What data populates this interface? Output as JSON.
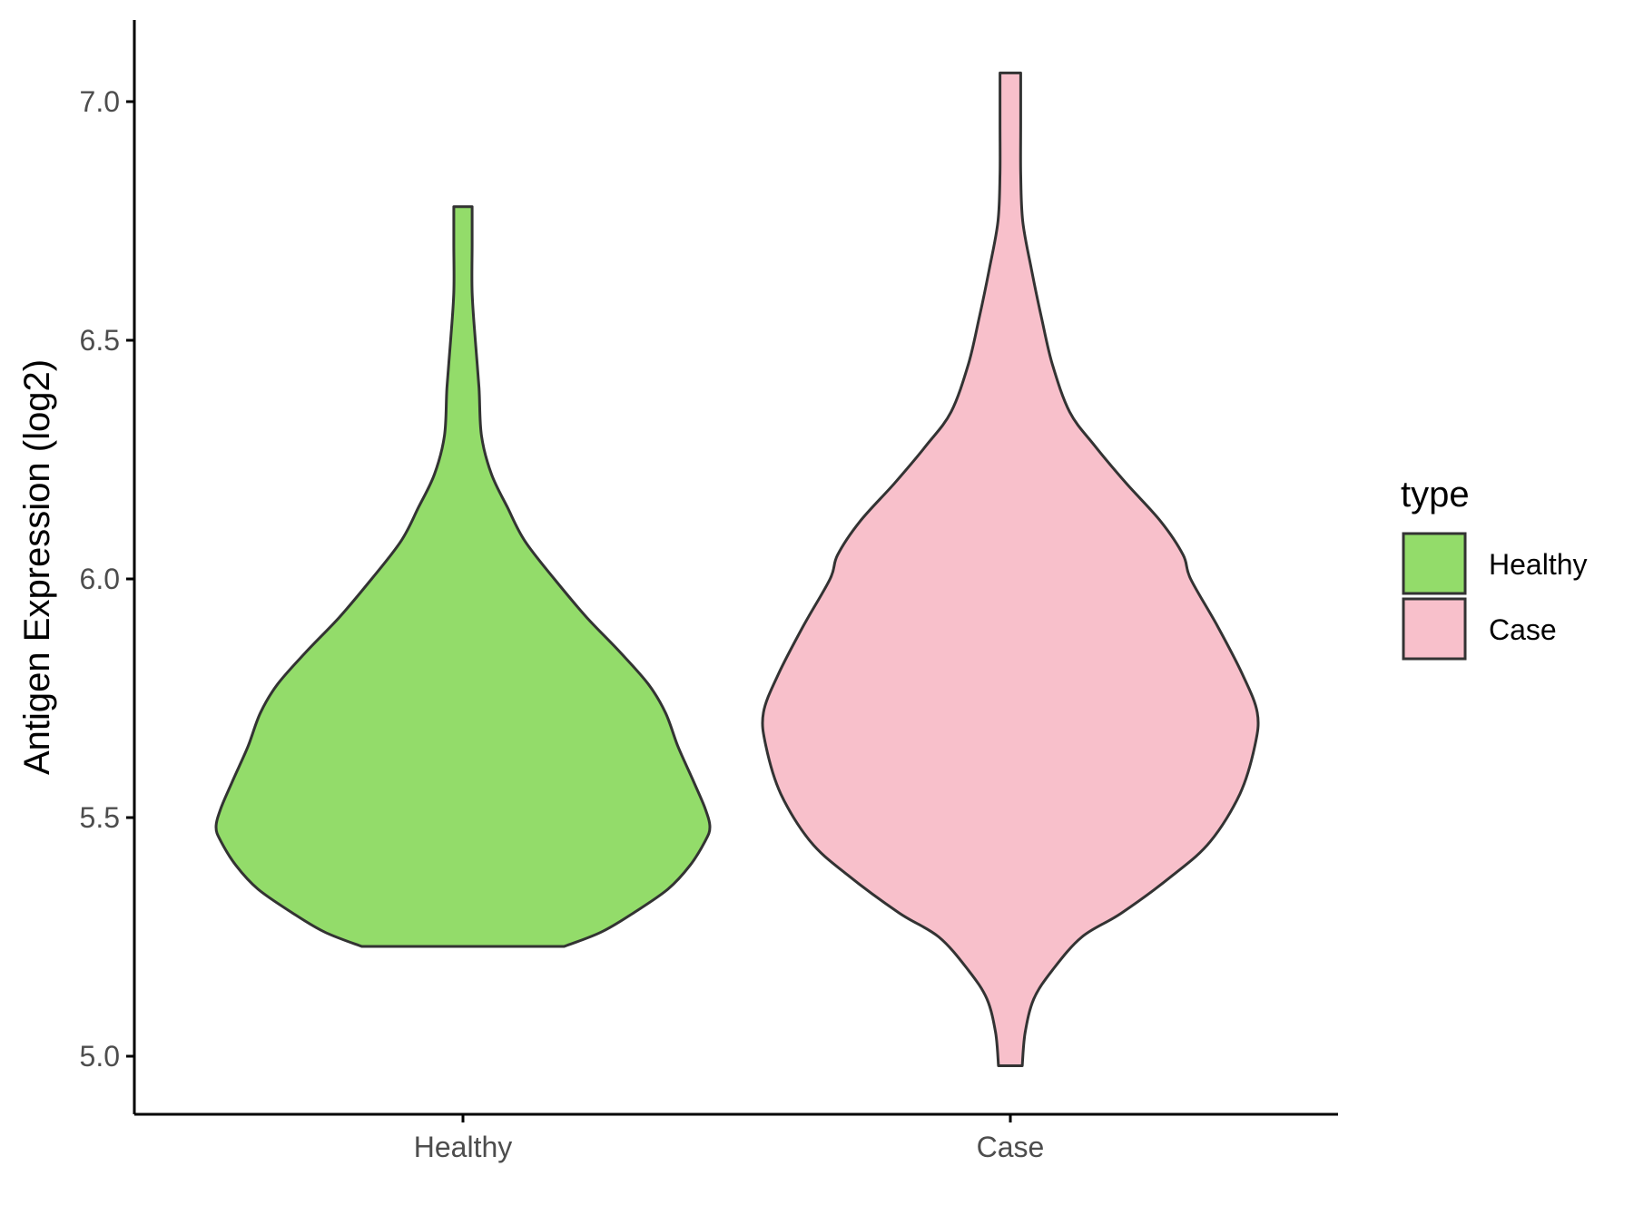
{
  "chart_data": {
    "type": "violin",
    "title": "",
    "xlabel": "",
    "ylabel": "Antigen Expression (log2)",
    "ylim": [
      4.9,
      7.18
    ],
    "y_ticks": [
      5.0,
      5.5,
      6.0,
      6.5,
      7.0
    ],
    "y_tick_labels": [
      "5.0",
      "5.5",
      "6.0",
      "6.5",
      "7.0"
    ],
    "grid": false,
    "categories": [
      "Healthy",
      "Case"
    ],
    "legend": {
      "title": "type",
      "position": "right",
      "entries": [
        {
          "label": "Healthy",
          "color": "#93dc6a"
        },
        {
          "label": "Case",
          "color": "#f8c0cb"
        }
      ]
    },
    "series": [
      {
        "name": "Healthy",
        "color": "#93dc6a",
        "y_min": 5.23,
        "y_max": 6.78,
        "profile": [
          [
            5.23,
            0.41
          ],
          [
            5.26,
            0.56
          ],
          [
            5.3,
            0.69
          ],
          [
            5.35,
            0.83
          ],
          [
            5.4,
            0.92
          ],
          [
            5.45,
            0.98
          ],
          [
            5.48,
            1.0
          ],
          [
            5.52,
            0.98
          ],
          [
            5.58,
            0.93
          ],
          [
            5.65,
            0.87
          ],
          [
            5.72,
            0.82
          ],
          [
            5.78,
            0.75
          ],
          [
            5.85,
            0.63
          ],
          [
            5.92,
            0.5
          ],
          [
            6.0,
            0.37
          ],
          [
            6.08,
            0.25
          ],
          [
            6.15,
            0.18
          ],
          [
            6.22,
            0.115
          ],
          [
            6.3,
            0.075
          ],
          [
            6.4,
            0.065
          ],
          [
            6.5,
            0.05
          ],
          [
            6.6,
            0.037
          ],
          [
            6.7,
            0.037
          ],
          [
            6.78,
            0.037
          ]
        ]
      },
      {
        "name": "Case",
        "color": "#f8c0cb",
        "y_min": 4.98,
        "y_max": 7.06,
        "profile": [
          [
            4.98,
            0.048
          ],
          [
            5.05,
            0.06
          ],
          [
            5.12,
            0.095
          ],
          [
            5.18,
            0.17
          ],
          [
            5.25,
            0.29
          ],
          [
            5.3,
            0.45
          ],
          [
            5.38,
            0.66
          ],
          [
            5.45,
            0.81
          ],
          [
            5.55,
            0.93
          ],
          [
            5.65,
            0.99
          ],
          [
            5.72,
            1.0
          ],
          [
            5.8,
            0.94
          ],
          [
            5.9,
            0.84
          ],
          [
            6.0,
            0.73
          ],
          [
            6.05,
            0.7
          ],
          [
            6.12,
            0.61
          ],
          [
            6.2,
            0.47
          ],
          [
            6.28,
            0.34
          ],
          [
            6.35,
            0.24
          ],
          [
            6.45,
            0.17
          ],
          [
            6.55,
            0.125
          ],
          [
            6.65,
            0.085
          ],
          [
            6.75,
            0.05
          ],
          [
            6.85,
            0.042
          ],
          [
            6.95,
            0.042
          ],
          [
            7.06,
            0.042
          ]
        ]
      }
    ]
  }
}
